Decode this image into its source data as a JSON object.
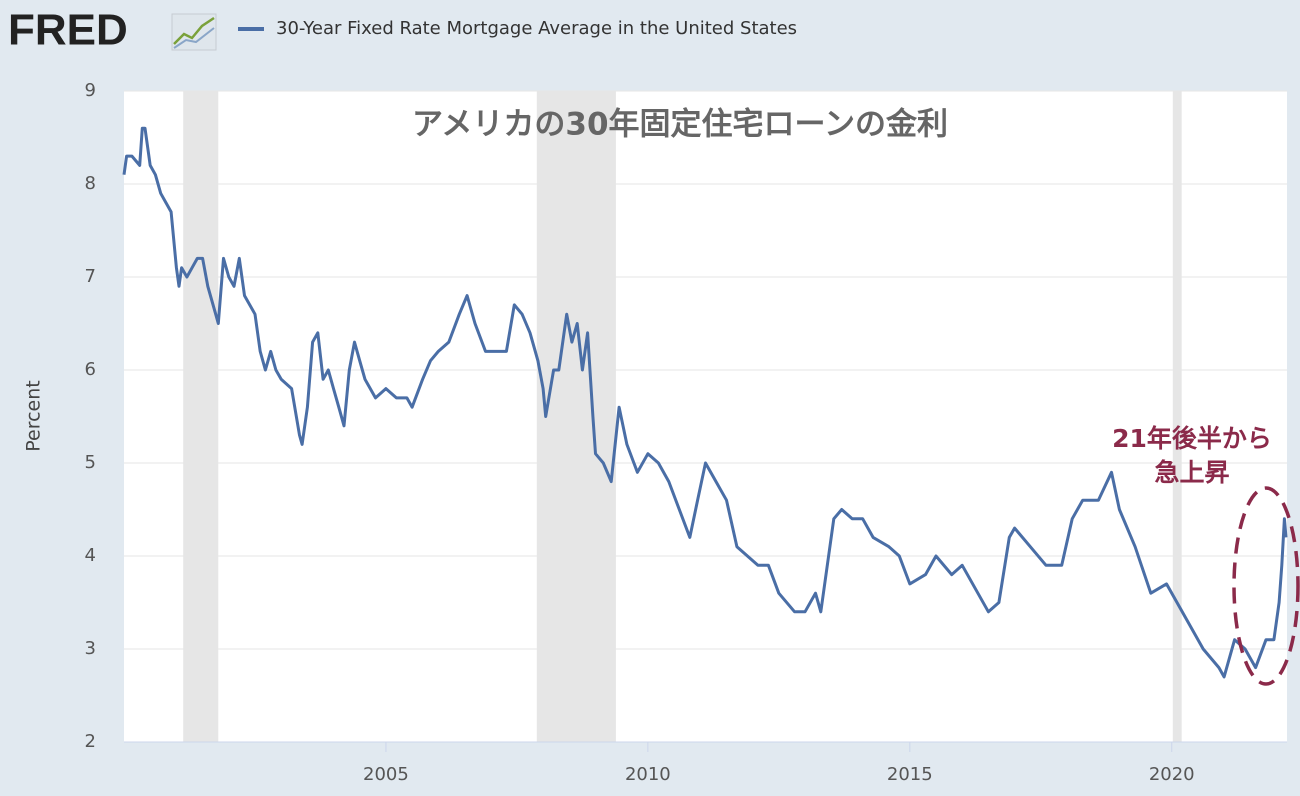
{
  "brand": "FRED",
  "chart_data": {
    "type": "line",
    "title": "アメリカの30年固定住宅ローンの金利",
    "annotation": [
      "21年後半から",
      "急上昇"
    ],
    "ylabel": "Percent",
    "xlim": [
      2000,
      2022.2
    ],
    "xticks": [
      2005,
      2010,
      2015,
      2020
    ],
    "ylim": [
      2,
      9
    ],
    "yticks": [
      2,
      3,
      4,
      5,
      6,
      7,
      8,
      9
    ],
    "grid": true,
    "shaded_periods": [
      [
        2001.13,
        2001.8
      ],
      [
        2007.88,
        2009.39
      ],
      [
        2020.02,
        2020.19
      ]
    ],
    "shade_color": "#e6e6e6",
    "series": [
      {
        "name": "30-Year Fixed Rate Mortgage Average in the United States",
        "color": "#4a6ea6",
        "x": [
          2000.0,
          2000.05,
          2000.15,
          2000.3,
          2000.35,
          2000.4,
          2000.5,
          2000.6,
          2000.7,
          2000.8,
          2000.9,
          2001.0,
          2001.05,
          2001.1,
          2001.2,
          2001.3,
          2001.4,
          2001.5,
          2001.6,
          2001.75,
          2001.8,
          2001.9,
          2002.0,
          2002.1,
          2002.2,
          2002.3,
          2002.5,
          2002.6,
          2002.7,
          2002.8,
          2002.9,
          2003.0,
          2003.2,
          2003.35,
          2003.4,
          2003.5,
          2003.6,
          2003.7,
          2003.8,
          2003.9,
          2004.0,
          2004.1,
          2004.2,
          2004.3,
          2004.4,
          2004.5,
          2004.6,
          2004.8,
          2005.0,
          2005.2,
          2005.4,
          2005.5,
          2005.7,
          2005.85,
          2006.0,
          2006.2,
          2006.4,
          2006.55,
          2006.7,
          2006.9,
          2007.1,
          2007.3,
          2007.45,
          2007.6,
          2007.75,
          2007.9,
          2008.0,
          2008.05,
          2008.2,
          2008.3,
          2008.45,
          2008.55,
          2008.65,
          2008.75,
          2008.85,
          2008.95,
          2009.0,
          2009.15,
          2009.3,
          2009.45,
          2009.6,
          2009.8,
          2010.0,
          2010.2,
          2010.4,
          2010.6,
          2010.8,
          2010.95,
          2011.1,
          2011.3,
          2011.5,
          2011.7,
          2011.9,
          2012.1,
          2012.3,
          2012.5,
          2012.8,
          2013.0,
          2013.2,
          2013.3,
          2013.55,
          2013.7,
          2013.9,
          2014.1,
          2014.3,
          2014.6,
          2014.8,
          2015.0,
          2015.3,
          2015.5,
          2015.8,
          2016.0,
          2016.3,
          2016.5,
          2016.7,
          2016.9,
          2017.0,
          2017.3,
          2017.6,
          2017.9,
          2018.1,
          2018.3,
          2018.6,
          2018.85,
          2019.0,
          2019.3,
          2019.6,
          2019.9,
          2020.1,
          2020.3,
          2020.6,
          2020.9,
          2021.0,
          2021.2,
          2021.4,
          2021.6,
          2021.8,
          2021.95,
          2022.05,
          2022.1,
          2022.15,
          2022.18
        ],
        "values": [
          8.1,
          8.3,
          8.3,
          8.2,
          8.6,
          8.6,
          8.2,
          8.1,
          7.9,
          7.8,
          7.7,
          7.1,
          6.9,
          7.1,
          7.0,
          7.1,
          7.2,
          7.2,
          6.9,
          6.6,
          6.5,
          7.2,
          7.0,
          6.9,
          7.2,
          6.8,
          6.6,
          6.2,
          6.0,
          6.2,
          6.0,
          5.9,
          5.8,
          5.3,
          5.2,
          5.6,
          6.3,
          6.4,
          5.9,
          6.0,
          5.8,
          5.6,
          5.4,
          6.0,
          6.3,
          6.1,
          5.9,
          5.7,
          5.8,
          5.7,
          5.7,
          5.6,
          5.9,
          6.1,
          6.2,
          6.3,
          6.6,
          6.8,
          6.5,
          6.2,
          6.2,
          6.2,
          6.7,
          6.6,
          6.4,
          6.1,
          5.8,
          5.5,
          6.0,
          6.0,
          6.6,
          6.3,
          6.5,
          6.0,
          6.4,
          5.5,
          5.1,
          5.0,
          4.8,
          5.6,
          5.2,
          4.9,
          5.1,
          5.0,
          4.8,
          4.5,
          4.2,
          4.6,
          5.0,
          4.8,
          4.6,
          4.1,
          4.0,
          3.9,
          3.9,
          3.6,
          3.4,
          3.4,
          3.6,
          3.4,
          4.4,
          4.5,
          4.4,
          4.4,
          4.2,
          4.1,
          4.0,
          3.7,
          3.8,
          4.0,
          3.8,
          3.9,
          3.6,
          3.4,
          3.5,
          4.2,
          4.3,
          4.1,
          3.9,
          3.9,
          4.4,
          4.6,
          4.6,
          4.9,
          4.5,
          4.1,
          3.6,
          3.7,
          3.5,
          3.3,
          3.0,
          2.8,
          2.7,
          3.1,
          3.0,
          2.8,
          3.1,
          3.1,
          3.5,
          3.9,
          4.4,
          4.2
        ]
      }
    ]
  }
}
